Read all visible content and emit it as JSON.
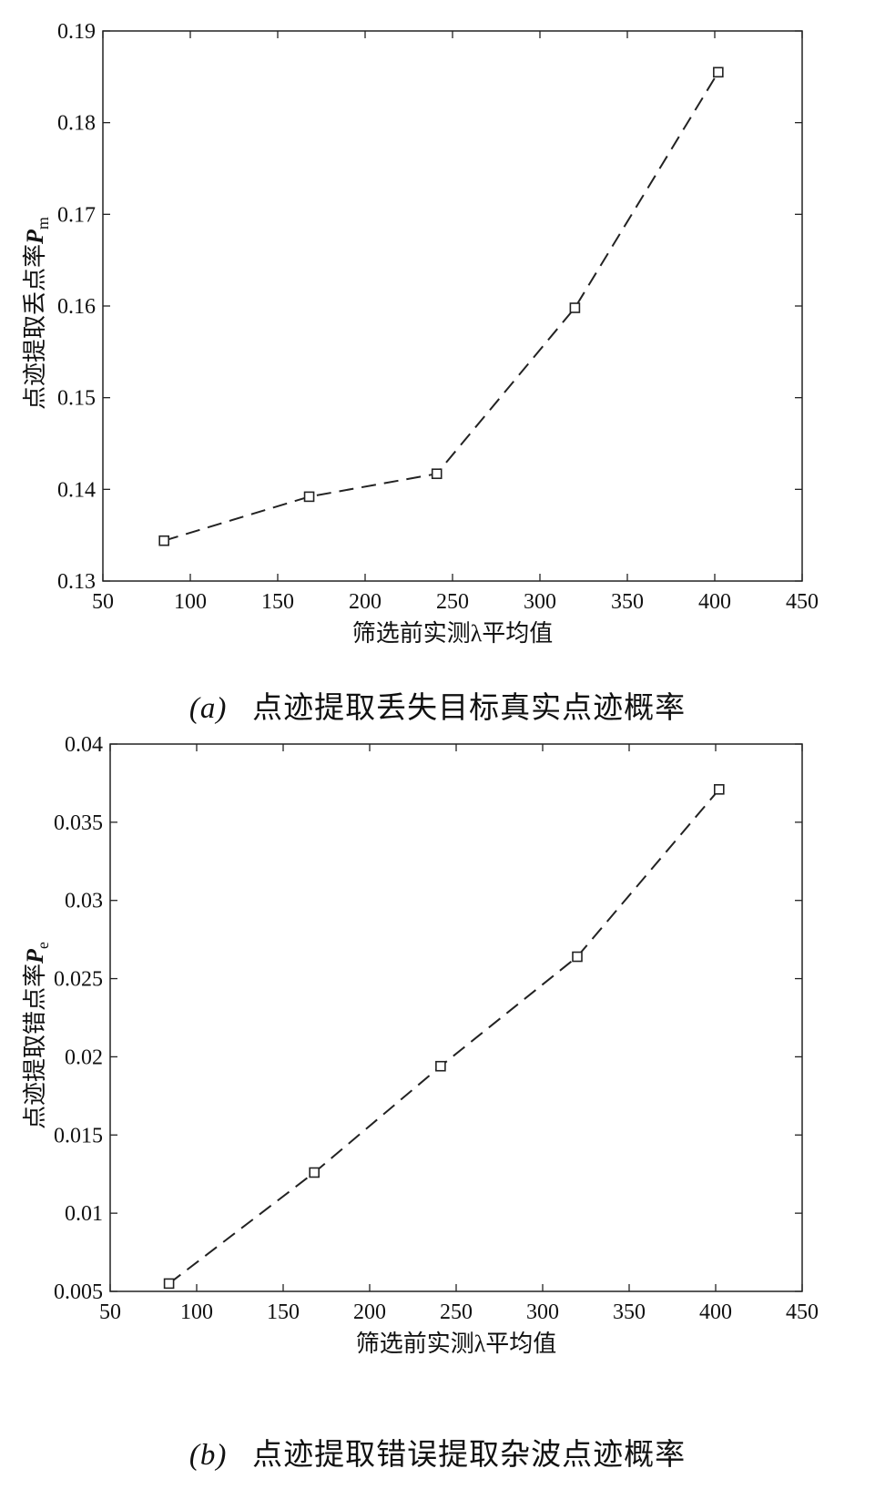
{
  "chart_data": [
    {
      "type": "line",
      "title": "",
      "xlabel": "筛选前实测λ平均值",
      "ylabel_prefix": "点迹提取丢点率",
      "ylabel_var": "P",
      "ylabel_sub": "m",
      "xlim": [
        50,
        450
      ],
      "ylim": [
        0.13,
        0.19
      ],
      "xticks": [
        50,
        100,
        150,
        200,
        250,
        300,
        350,
        400,
        450
      ],
      "yticks": [
        "0.13",
        "0.14",
        "0.15",
        "0.16",
        "0.17",
        "0.18",
        "0.19"
      ],
      "marker": "square",
      "line_style": "dashed",
      "series": [
        {
          "x": [
            85,
            168,
            241,
            320,
            402
          ],
          "y": [
            0.1344,
            0.1392,
            0.1417,
            0.1598,
            0.1855
          ]
        }
      ],
      "caption_letter": "(a)",
      "caption_text": "点迹提取丢失目标真实点迹概率"
    },
    {
      "type": "line",
      "title": "",
      "xlabel": "筛选前实测λ平均值",
      "ylabel_prefix": "点迹提取错点率",
      "ylabel_var": "P",
      "ylabel_sub": "e",
      "xlim": [
        50,
        450
      ],
      "ylim": [
        0.005,
        0.04
      ],
      "xticks": [
        50,
        100,
        150,
        200,
        250,
        300,
        350,
        400,
        450
      ],
      "yticks": [
        "0.005",
        "0.01",
        "0.015",
        "0.02",
        "0.025",
        "0.03",
        "0.035",
        "0.04"
      ],
      "marker": "square",
      "line_style": "dashed",
      "series": [
        {
          "x": [
            84,
            168,
            241,
            320,
            402
          ],
          "y": [
            0.0055,
            0.0126,
            0.0194,
            0.0264,
            0.0371
          ]
        }
      ],
      "caption_letter": "(b)",
      "caption_text": "点迹提取错误提取杂波点迹概率"
    }
  ]
}
